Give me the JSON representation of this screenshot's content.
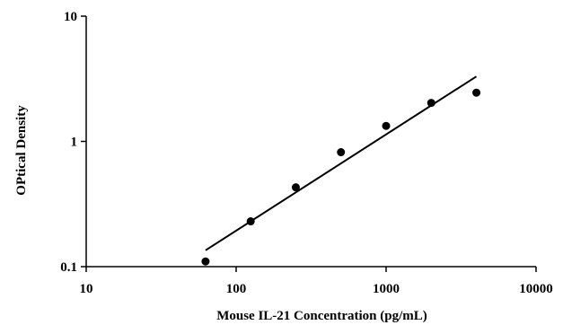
{
  "chart_data": {
    "type": "scatter",
    "title": "",
    "xlabel": "Mouse IL-21  Concentration (pg/mL)",
    "ylabel": "OPtical Density",
    "x_scale": "log",
    "y_scale": "log",
    "xlim": [
      10,
      10000
    ],
    "ylim": [
      0.1,
      10
    ],
    "x_ticks": [
      10,
      100,
      1000,
      10000
    ],
    "x_tick_labels": [
      "10",
      "100",
      "1000",
      "10000"
    ],
    "y_ticks": [
      0.1,
      1,
      10
    ],
    "y_tick_labels": [
      "0.1",
      "1",
      "10"
    ],
    "grid": false,
    "legend": "none",
    "series": [
      {
        "type": "scatter",
        "color": "#000000",
        "points": [
          {
            "x": 62.5,
            "y": 0.11
          },
          {
            "x": 125,
            "y": 0.23
          },
          {
            "x": 250,
            "y": 0.43
          },
          {
            "x": 500,
            "y": 0.82
          },
          {
            "x": 1000,
            "y": 1.33
          },
          {
            "x": 2000,
            "y": 2.03
          },
          {
            "x": 4000,
            "y": 2.45
          }
        ]
      },
      {
        "type": "line",
        "color": "#000000",
        "points": [
          {
            "x": 62.5,
            "y": 0.135
          },
          {
            "x": 4000,
            "y": 3.3
          }
        ]
      }
    ]
  }
}
